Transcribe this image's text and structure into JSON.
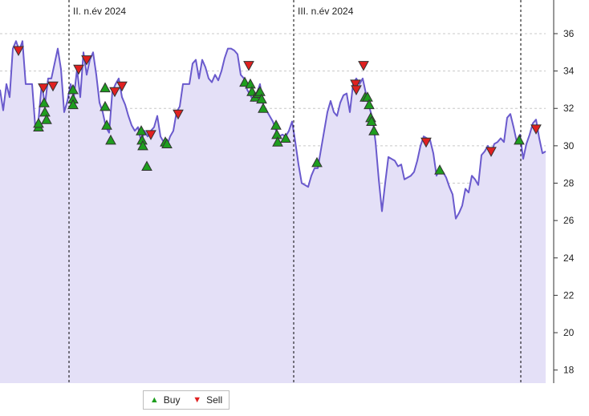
{
  "chart_data": {
    "type": "line",
    "x_range": [
      0,
      680
    ],
    "ylim": [
      17.3,
      37.8
    ],
    "y_ticks": [
      18,
      20,
      22,
      24,
      26,
      28,
      30,
      32,
      34,
      36
    ],
    "grid": true,
    "period_markers": [
      {
        "x": 86,
        "label": "II. n.év 2024"
      },
      {
        "x": 366,
        "label": "III. n.év 2024"
      },
      {
        "x": 649,
        "label": ""
      }
    ],
    "series": [
      {
        "color": "#6a5acd",
        "fill": "#e4e0f7",
        "points": [
          [
            0,
            33.0
          ],
          [
            4,
            31.9
          ],
          [
            8,
            33.3
          ],
          [
            12,
            32.6
          ],
          [
            16,
            35.2
          ],
          [
            20,
            35.6
          ],
          [
            24,
            35.1
          ],
          [
            28,
            35.6
          ],
          [
            32,
            33.3
          ],
          [
            36,
            33.3
          ],
          [
            40,
            33.3
          ],
          [
            44,
            31.0
          ],
          [
            48,
            31.4
          ],
          [
            52,
            33.3
          ],
          [
            56,
            32.2
          ],
          [
            60,
            33.6
          ],
          [
            64,
            33.6
          ],
          [
            68,
            34.4
          ],
          [
            72,
            35.2
          ],
          [
            76,
            34.1
          ],
          [
            80,
            31.8
          ],
          [
            84,
            32.4
          ],
          [
            88,
            33.3
          ],
          [
            92,
            32.6
          ],
          [
            96,
            34.1
          ],
          [
            100,
            32.6
          ],
          [
            104,
            35.0
          ],
          [
            108,
            33.8
          ],
          [
            112,
            34.6
          ],
          [
            116,
            35.0
          ],
          [
            120,
            33.8
          ],
          [
            124,
            32.3
          ],
          [
            128,
            31.8
          ],
          [
            132,
            31.0
          ],
          [
            136,
            30.7
          ],
          [
            140,
            32.9
          ],
          [
            144,
            33.3
          ],
          [
            148,
            33.6
          ],
          [
            152,
            32.6
          ],
          [
            156,
            32.2
          ],
          [
            160,
            31.6
          ],
          [
            164,
            31.1
          ],
          [
            168,
            30.8
          ],
          [
            172,
            31.0
          ],
          [
            176,
            30.2
          ],
          [
            180,
            30.8
          ],
          [
            184,
            30.5
          ],
          [
            188,
            30.8
          ],
          [
            192,
            31.0
          ],
          [
            196,
            31.6
          ],
          [
            200,
            30.5
          ],
          [
            204,
            30.2
          ],
          [
            208,
            30.0
          ],
          [
            212,
            30.5
          ],
          [
            216,
            30.8
          ],
          [
            220,
            31.8
          ],
          [
            224,
            32.1
          ],
          [
            228,
            33.3
          ],
          [
            232,
            33.3
          ],
          [
            236,
            33.3
          ],
          [
            240,
            34.4
          ],
          [
            244,
            34.6
          ],
          [
            248,
            33.6
          ],
          [
            252,
            34.6
          ],
          [
            256,
            34.2
          ],
          [
            260,
            33.6
          ],
          [
            264,
            33.4
          ],
          [
            268,
            33.8
          ],
          [
            272,
            33.5
          ],
          [
            276,
            34.0
          ],
          [
            280,
            34.7
          ],
          [
            284,
            35.2
          ],
          [
            288,
            35.2
          ],
          [
            292,
            35.1
          ],
          [
            296,
            34.9
          ],
          [
            300,
            33.8
          ],
          [
            304,
            33.6
          ],
          [
            308,
            33.0
          ],
          [
            312,
            32.7
          ],
          [
            316,
            32.4
          ],
          [
            320,
            32.8
          ],
          [
            324,
            33.3
          ],
          [
            328,
            32.2
          ],
          [
            332,
            31.9
          ],
          [
            336,
            31.6
          ],
          [
            340,
            31.3
          ],
          [
            344,
            30.8
          ],
          [
            348,
            30.5
          ],
          [
            352,
            30.6
          ],
          [
            356,
            30.5
          ],
          [
            360,
            30.8
          ],
          [
            364,
            31.3
          ],
          [
            368,
            30.2
          ],
          [
            372,
            29.0
          ],
          [
            376,
            28.0
          ],
          [
            380,
            27.9
          ],
          [
            384,
            27.8
          ],
          [
            388,
            28.4
          ],
          [
            392,
            28.8
          ],
          [
            396,
            28.8
          ],
          [
            400,
            29.8
          ],
          [
            404,
            30.8
          ],
          [
            408,
            31.8
          ],
          [
            412,
            32.4
          ],
          [
            416,
            31.8
          ],
          [
            420,
            31.6
          ],
          [
            424,
            32.3
          ],
          [
            428,
            32.7
          ],
          [
            432,
            32.8
          ],
          [
            436,
            31.8
          ],
          [
            440,
            33.3
          ],
          [
            444,
            33.6
          ],
          [
            448,
            33.3
          ],
          [
            452,
            33.6
          ],
          [
            456,
            32.8
          ],
          [
            460,
            32.1
          ],
          [
            464,
            31.5
          ],
          [
            468,
            30.2
          ],
          [
            472,
            28.2
          ],
          [
            476,
            26.5
          ],
          [
            480,
            28.0
          ],
          [
            484,
            29.4
          ],
          [
            488,
            29.3
          ],
          [
            492,
            29.2
          ],
          [
            496,
            28.9
          ],
          [
            500,
            29.0
          ],
          [
            504,
            28.2
          ],
          [
            508,
            28.3
          ],
          [
            512,
            28.4
          ],
          [
            516,
            28.6
          ],
          [
            520,
            29.2
          ],
          [
            524,
            30.0
          ],
          [
            528,
            30.5
          ],
          [
            532,
            30.4
          ],
          [
            536,
            30.3
          ],
          [
            540,
            29.6
          ],
          [
            544,
            28.4
          ],
          [
            548,
            28.8
          ],
          [
            552,
            28.6
          ],
          [
            556,
            28.3
          ],
          [
            560,
            27.8
          ],
          [
            564,
            27.4
          ],
          [
            568,
            26.1
          ],
          [
            572,
            26.4
          ],
          [
            576,
            26.8
          ],
          [
            580,
            27.7
          ],
          [
            584,
            27.5
          ],
          [
            588,
            28.4
          ],
          [
            592,
            28.2
          ],
          [
            596,
            27.9
          ],
          [
            600,
            29.5
          ],
          [
            604,
            29.7
          ],
          [
            608,
            30.0
          ],
          [
            612,
            29.6
          ],
          [
            616,
            30.1
          ],
          [
            620,
            30.2
          ],
          [
            624,
            30.4
          ],
          [
            628,
            30.2
          ],
          [
            632,
            31.5
          ],
          [
            636,
            31.7
          ],
          [
            640,
            31.0
          ],
          [
            644,
            30.2
          ],
          [
            648,
            30.6
          ],
          [
            652,
            29.3
          ],
          [
            656,
            30.1
          ],
          [
            660,
            30.6
          ],
          [
            664,
            31.2
          ],
          [
            668,
            31.4
          ],
          [
            672,
            30.4
          ],
          [
            676,
            29.6
          ],
          [
            680,
            29.7
          ]
        ]
      }
    ],
    "buy_signals": [
      [
        48,
        31.0
      ],
      [
        48,
        31.2
      ],
      [
        55,
        32.3
      ],
      [
        56,
        31.8
      ],
      [
        58,
        31.4
      ],
      [
        91,
        33.0
      ],
      [
        91,
        32.5
      ],
      [
        91,
        32.2
      ],
      [
        131,
        33.1
      ],
      [
        131,
        32.1
      ],
      [
        133,
        31.1
      ],
      [
        138,
        30.3
      ],
      [
        176,
        30.8
      ],
      [
        177,
        30.3
      ],
      [
        178,
        30.0
      ],
      [
        183,
        28.9
      ],
      [
        206,
        30.2
      ],
      [
        208,
        30.1
      ],
      [
        305,
        33.4
      ],
      [
        312,
        33.3
      ],
      [
        314,
        32.9
      ],
      [
        318,
        32.6
      ],
      [
        322,
        32.8
      ],
      [
        324,
        32.9
      ],
      [
        326,
        32.5
      ],
      [
        328,
        32.0
      ],
      [
        344,
        31.1
      ],
      [
        345,
        30.6
      ],
      [
        346,
        30.2
      ],
      [
        356,
        30.4
      ],
      [
        395,
        29.1
      ],
      [
        455,
        32.6
      ],
      [
        458,
        32.6
      ],
      [
        460,
        32.2
      ],
      [
        462,
        31.5
      ],
      [
        463,
        31.3
      ],
      [
        466,
        30.8
      ],
      [
        548,
        28.7
      ],
      [
        647,
        30.3
      ]
    ],
    "sell_signals": [
      [
        23,
        35.1
      ],
      [
        54,
        33.1
      ],
      [
        66,
        33.2
      ],
      [
        98,
        34.1
      ],
      [
        108,
        34.6
      ],
      [
        143,
        32.9
      ],
      [
        152,
        33.2
      ],
      [
        188,
        30.6
      ],
      [
        222,
        31.7
      ],
      [
        310,
        34.3
      ],
      [
        443,
        33.3
      ],
      [
        444,
        33.0
      ],
      [
        453,
        34.3
      ],
      [
        531,
        30.2
      ],
      [
        612,
        29.7
      ],
      [
        668,
        30.9
      ]
    ],
    "legend": {
      "position": "bottom-left",
      "items": [
        {
          "label": "Buy",
          "color": "#1e9e1e",
          "icon": "triangle-up-icon"
        },
        {
          "label": "Sell",
          "color": "#e02020",
          "icon": "triangle-down-icon"
        }
      ]
    }
  }
}
